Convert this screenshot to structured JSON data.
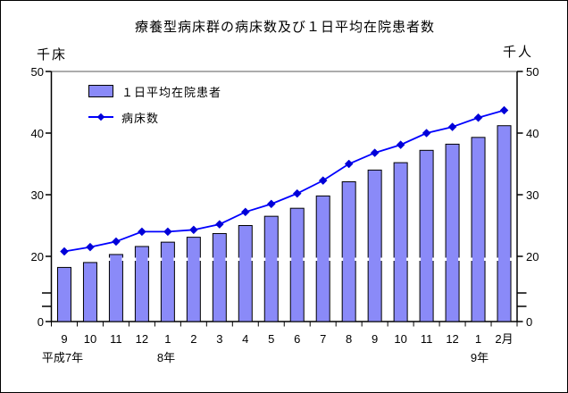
{
  "title": "療養型病床群の病床数及び１日平均在院患者数",
  "axes": {
    "left_unit": "千床",
    "right_unit": "千人",
    "tick_labels": [
      "50",
      "40",
      "30",
      "20",
      "0"
    ]
  },
  "legend": {
    "bar_label": "１日平均在院患者",
    "line_label": "病床数"
  },
  "x_axis": {
    "month_labels": [
      "9",
      "10",
      "11",
      "12",
      "1",
      "2",
      "3",
      "4",
      "5",
      "6",
      "7",
      "8",
      "9",
      "10",
      "11",
      "12",
      "1",
      "2月"
    ],
    "year_labels": [
      "平成7年",
      "8年",
      "9年"
    ]
  },
  "colors": {
    "bar_fill": "#8A8AF8",
    "bar_border": "#000000",
    "line": "#0000FF",
    "marker": "#0000D8",
    "grid_top": "#909090",
    "axis": "#000000"
  },
  "chart_data": {
    "type": "bar",
    "title": "療養型病床群の病床数及び１日平均在院患者数",
    "categories": [
      "9",
      "10",
      "11",
      "12",
      "1",
      "2",
      "3",
      "4",
      "5",
      "6",
      "7",
      "8",
      "9",
      "10",
      "11",
      "12",
      "1",
      "2"
    ],
    "year_groups": [
      {
        "label": "平成7年",
        "start_index": 0
      },
      {
        "label": "8年",
        "start_index": 4
      },
      {
        "label": "9年",
        "start_index": 16
      }
    ],
    "series": [
      {
        "name": "１日平均在院患者",
        "type": "bar",
        "unit": "千人",
        "values": [
          18.2,
          19.0,
          20.3,
          21.6,
          22.3,
          23.1,
          23.7,
          25.0,
          26.5,
          27.8,
          29.8,
          32.1,
          34.0,
          35.2,
          37.2,
          38.2,
          39.3,
          41.2
        ]
      },
      {
        "name": "病床数",
        "type": "line",
        "unit": "千床",
        "values": [
          20.8,
          21.5,
          22.4,
          24.0,
          24.0,
          24.3,
          25.2,
          27.2,
          28.5,
          30.2,
          32.3,
          35.0,
          36.8,
          38.1,
          40.0,
          41.0,
          42.5,
          43.7
        ]
      }
    ],
    "ylim": [
      0,
      50
    ],
    "y_ticks": [
      0,
      20,
      30,
      40,
      50
    ],
    "axis_break_between": [
      0,
      20
    ],
    "left_ylabel": "千床",
    "right_ylabel": "千人",
    "legend_position": "top-left",
    "grid": "top-border-only"
  }
}
